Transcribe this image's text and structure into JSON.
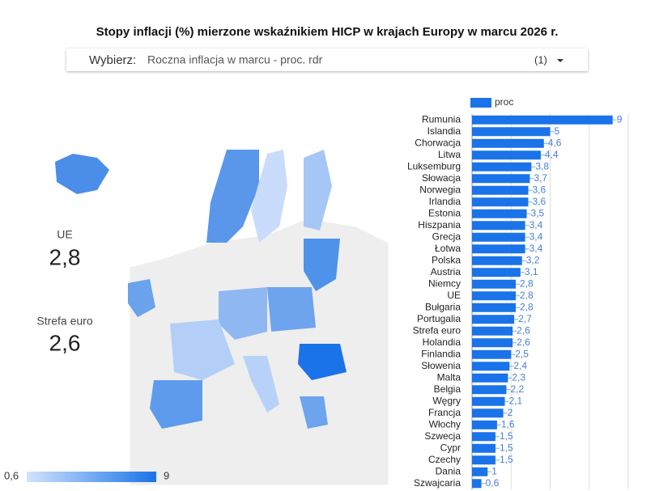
{
  "header": {
    "title": "Stopy inflacji (%) mierzone wskaźnikiem HICP w krajach Europy w marcu 2026 r."
  },
  "filter": {
    "label": "Wybierz:",
    "value": "Roczna inflacja w marcu - proc. rdr",
    "count": "(1)"
  },
  "kpis": [
    {
      "label": "UE",
      "value": 2.8,
      "value_label": "2,8"
    },
    {
      "label": "Strefa euro",
      "value": 2.6,
      "value_label": "2,6"
    }
  ],
  "map_legend": {
    "min": 0.6,
    "min_label": "0,6",
    "max": 9,
    "max_label": "9",
    "color_min": "#d2e3fc",
    "color_max": "#1a73e8"
  },
  "chart_data": {
    "type": "bar",
    "orientation": "horizontal",
    "categories": [
      "Rumunia",
      "Islandia",
      "Chorwacja",
      "Litwa",
      "Luksemburg",
      "Słowacja",
      "Norwegia",
      "Irlandia",
      "Estonia",
      "Hiszpania",
      "Grecja",
      "Łotwa",
      "Polska",
      "Austria",
      "Niemcy",
      "UE",
      "Bułgaria",
      "Portugalia",
      "Strefa euro",
      "Holandia",
      "Finlandia",
      "Słowenia",
      "Malta",
      "Belgia",
      "Węgry",
      "Francja",
      "Włochy",
      "Szwecja",
      "Cypr",
      "Czechy",
      "Dania",
      "Szwajcaria"
    ],
    "series": [
      {
        "name": "proc",
        "color": "#1a73e8",
        "values": [
          9,
          5,
          4.6,
          4.4,
          3.8,
          3.7,
          3.6,
          3.6,
          3.5,
          3.4,
          3.4,
          3.4,
          3.2,
          3.1,
          2.8,
          2.8,
          2.8,
          2.7,
          2.6,
          2.6,
          2.5,
          2.4,
          2.3,
          2.2,
          2.1,
          2,
          1.6,
          1.5,
          1.5,
          1.5,
          1,
          0.6
        ],
        "value_labels": [
          "9",
          "5",
          "4,6",
          "4,4",
          "3,8",
          "3,7",
          "3,6",
          "3,6",
          "3,5",
          "3,4",
          "3,4",
          "3,4",
          "3,2",
          "3,1",
          "2,8",
          "2,8",
          "2,8",
          "2,7",
          "2,6",
          "2,6",
          "2,5",
          "2,4",
          "2,3",
          "2,2",
          "2,1",
          "2",
          "1,6",
          "1,5",
          "1,5",
          "1,5",
          "1",
          "0,6"
        ]
      }
    ],
    "xlim": [
      0,
      10
    ],
    "xticks": [
      0,
      2.5,
      5,
      7.5,
      10
    ],
    "grid": true
  }
}
